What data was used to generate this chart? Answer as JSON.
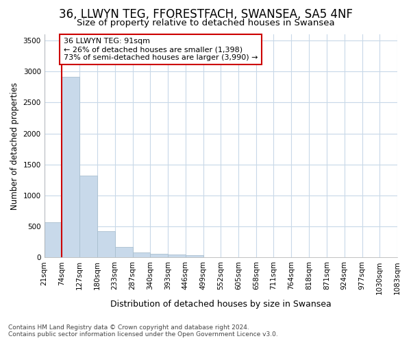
{
  "title": "36, LLWYN TEG, FFORESTFACH, SWANSEA, SA5 4NF",
  "subtitle": "Size of property relative to detached houses in Swansea",
  "xlabel": "Distribution of detached houses by size in Swansea",
  "ylabel": "Number of detached properties",
  "footer_line1": "Contains HM Land Registry data © Crown copyright and database right 2024.",
  "footer_line2": "Contains public sector information licensed under the Open Government Licence v3.0.",
  "annotation_line1": "36 LLWYN TEG: 91sqm",
  "annotation_line2": "← 26% of detached houses are smaller (1,398)",
  "annotation_line3": "73% of semi-detached houses are larger (3,990) →",
  "property_size_bin": 74,
  "red_line_x": 74,
  "bin_edges": [
    21,
    74,
    127,
    180,
    233,
    287,
    340,
    393,
    446,
    499,
    552,
    605,
    658,
    711,
    764,
    818,
    871,
    924,
    977,
    1030,
    1083
  ],
  "bin_labels": [
    "21sqm",
    "74sqm",
    "127sqm",
    "180sqm",
    "233sqm",
    "287sqm",
    "340sqm",
    "393sqm",
    "446sqm",
    "499sqm",
    "552sqm",
    "605sqm",
    "658sqm",
    "711sqm",
    "764sqm",
    "818sqm",
    "871sqm",
    "924sqm",
    "977sqm",
    "1030sqm",
    "1083sqm"
  ],
  "bar_values": [
    570,
    2910,
    1320,
    420,
    170,
    80,
    55,
    45,
    40,
    0,
    0,
    0,
    0,
    0,
    0,
    0,
    0,
    0,
    0,
    0
  ],
  "bar_color": "#c8d9ea",
  "bar_edge_color": "#aabfcf",
  "red_line_color": "#cc0000",
  "annotation_box_color": "#ffffff",
  "annotation_box_edge": "#cc0000",
  "background_color": "#ffffff",
  "plot_bg_color": "#ffffff",
  "grid_color": "#c8d8e8",
  "ylim": [
    0,
    3600
  ],
  "yticks": [
    0,
    500,
    1000,
    1500,
    2000,
    2500,
    3000,
    3500
  ],
  "title_fontsize": 12,
  "subtitle_fontsize": 9.5,
  "xlabel_fontsize": 9,
  "ylabel_fontsize": 8.5,
  "tick_fontsize": 7.5,
  "footer_fontsize": 6.5
}
